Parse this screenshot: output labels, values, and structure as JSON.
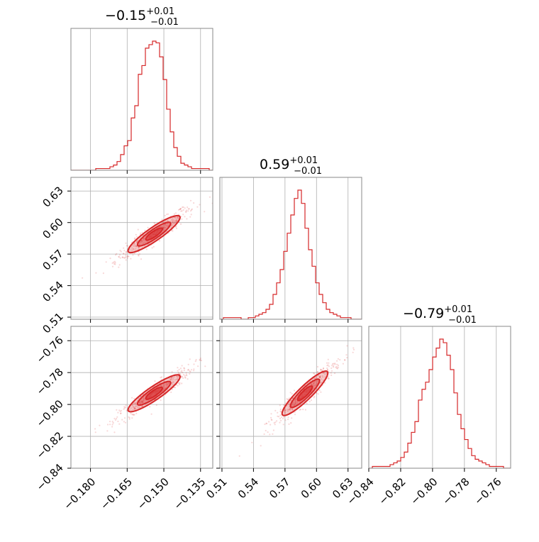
{
  "chart_data": {
    "type": "corner",
    "color": "#d62728",
    "titles": [
      {
        "value": "−0.15",
        "plus": "+0.01",
        "minus": "−0.01"
      },
      {
        "value": "0.59",
        "plus": "+0.01",
        "minus": "−0.01"
      },
      {
        "value": "−0.79",
        "plus": "+0.01",
        "minus": "−0.01"
      }
    ],
    "params": [
      {
        "range": [
          -0.188,
          -0.13
        ],
        "ticks": [
          -0.18,
          -0.165,
          -0.15,
          -0.135
        ],
        "tick_labels": [
          "−0.180",
          "−0.165",
          "−0.150",
          "−0.135"
        ]
      },
      {
        "range": [
          0.508,
          0.643
        ],
        "ticks": [
          0.51,
          0.54,
          0.57,
          0.6,
          0.63
        ],
        "tick_labels": [
          "0.51",
          "0.54",
          "0.57",
          "0.60",
          "0.63"
        ]
      },
      {
        "range": [
          -0.84,
          -0.751
        ],
        "ticks": [
          -0.84,
          -0.82,
          -0.8,
          -0.78,
          -0.76
        ],
        "tick_labels": [
          "−0.84",
          "−0.82",
          "−0.80",
          "−0.78",
          "−0.76"
        ]
      }
    ],
    "histograms": [
      {
        "bin_edges_range": [
          -0.188,
          -0.13
        ],
        "counts": [
          0,
          0,
          0,
          0,
          0,
          0,
          0,
          1,
          1,
          1,
          1,
          2,
          3,
          5,
          9,
          14,
          17,
          30,
          37,
          55,
          60,
          70,
          72,
          74,
          73,
          65,
          52,
          35,
          22,
          13,
          8,
          4,
          3,
          2,
          1,
          1,
          1,
          1,
          1,
          0
        ]
      },
      {
        "bin_edges_range": [
          0.508,
          0.643
        ],
        "counts": [
          0,
          1,
          1,
          1,
          1,
          1,
          0,
          0,
          1,
          1,
          2,
          3,
          4,
          6,
          9,
          15,
          22,
          30,
          41,
          52,
          63,
          73,
          78,
          70,
          55,
          42,
          32,
          22,
          15,
          10,
          6,
          4,
          3,
          2,
          1,
          1,
          1,
          0,
          0,
          0
        ]
      },
      {
        "bin_edges_range": [
          -0.84,
          -0.751
        ],
        "counts": [
          0,
          1,
          1,
          1,
          1,
          1,
          2,
          3,
          4,
          6,
          9,
          14,
          20,
          26,
          38,
          44,
          48,
          55,
          62,
          67,
          72,
          70,
          63,
          55,
          42,
          30,
          22,
          16,
          11,
          7,
          5,
          4,
          3,
          2,
          1,
          1,
          1,
          1,
          0,
          0
        ]
      }
    ],
    "pairs": [
      {
        "x_param": 0,
        "y_param": 1,
        "center": [
          -0.154,
          0.589
        ],
        "slope": 1.6
      },
      {
        "x_param": 0,
        "y_param": 2,
        "center": [
          -0.154,
          -0.793
        ],
        "slope": 1.05
      },
      {
        "x_param": 1,
        "y_param": 2,
        "center": [
          0.589,
          -0.793
        ],
        "slope": 0.64
      }
    ]
  }
}
